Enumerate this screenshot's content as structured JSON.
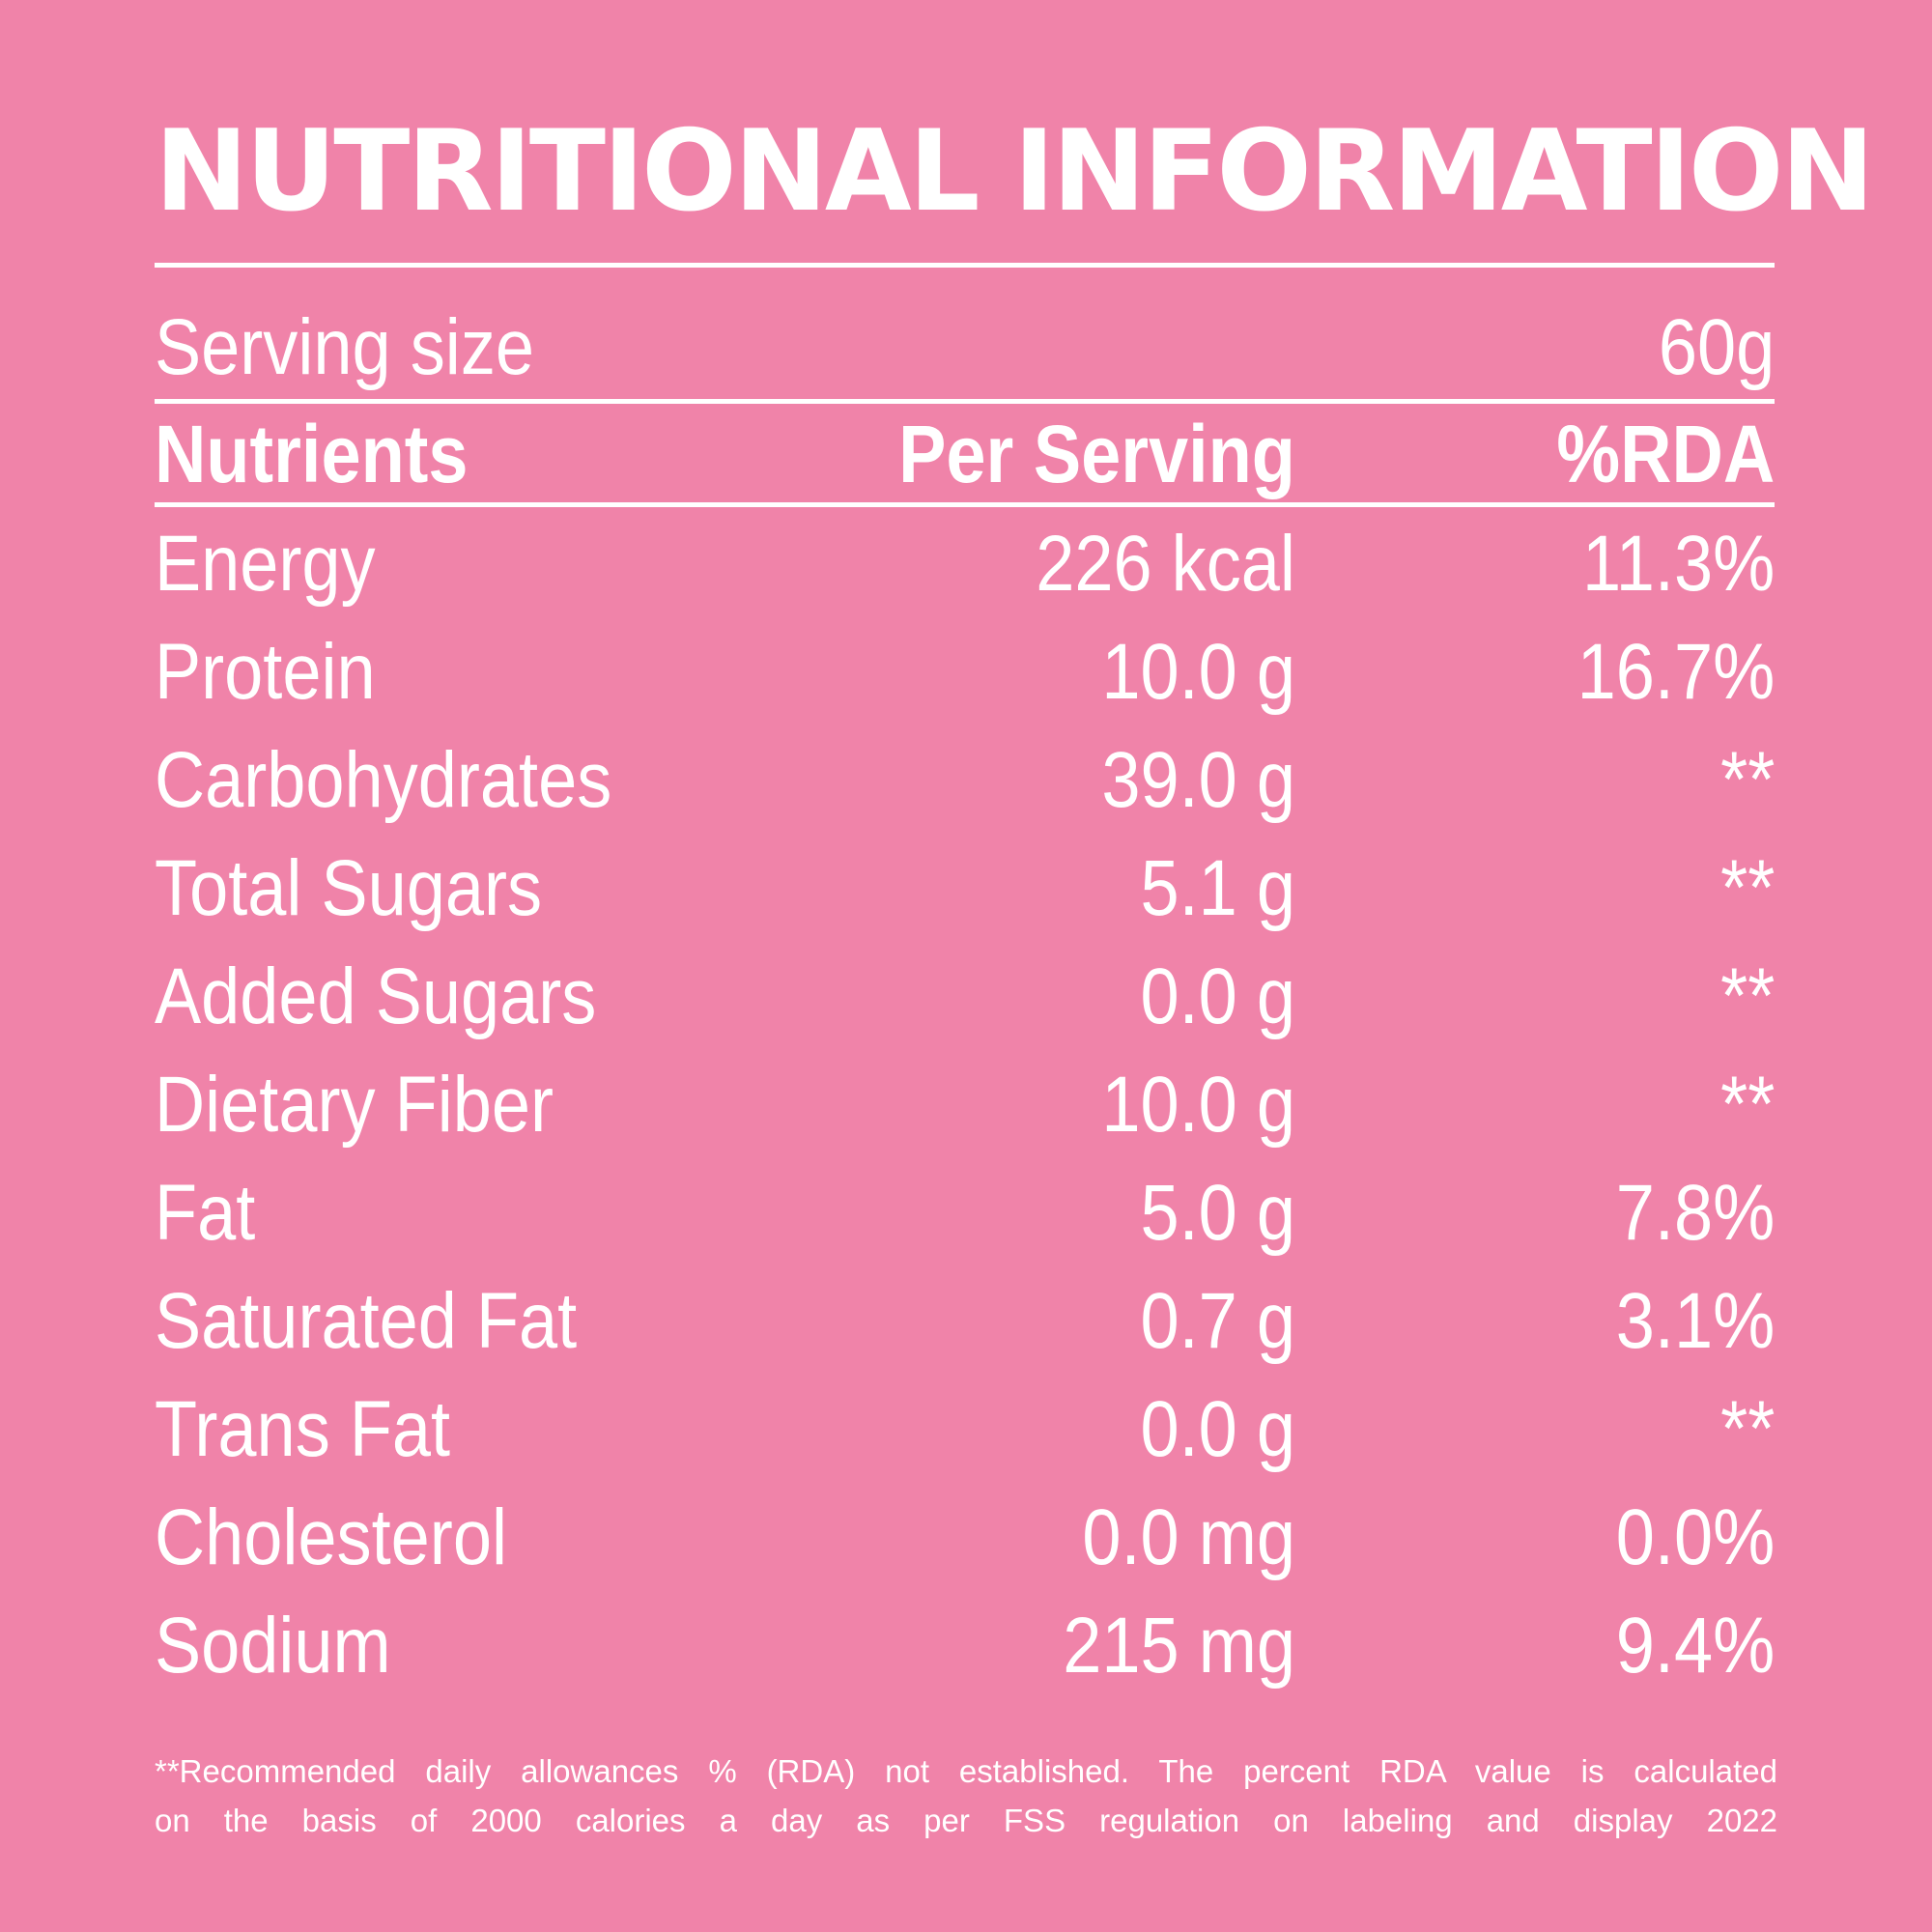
{
  "title": "NUTRITIONAL INFORMATION",
  "serving": {
    "label": "Serving  size",
    "value": "60g"
  },
  "header": {
    "nutrients": "Nutrients",
    "per_serving": "Per Serving",
    "rda": "%RDA"
  },
  "rows": [
    {
      "nutrient": "Energy",
      "per_serving": "226 kcal",
      "rda": "11.3%"
    },
    {
      "nutrient": "Protein",
      "per_serving": "10.0 g",
      "rda": "16.7%"
    },
    {
      "nutrient": "Carbohydrates",
      "per_serving": "39.0 g",
      "rda": "**"
    },
    {
      "nutrient": "Total Sugars",
      "per_serving": "5.1 g",
      "rda": "**"
    },
    {
      "nutrient": "Added Sugars",
      "per_serving": "0.0 g",
      "rda": "**"
    },
    {
      "nutrient": "Dietary Fiber",
      "per_serving": "10.0 g",
      "rda": "**"
    },
    {
      "nutrient": "Fat",
      "per_serving": "5.0 g",
      "rda": "7.8%"
    },
    {
      "nutrient": "Saturated Fat",
      "per_serving": "0.7 g",
      "rda": "3.1%"
    },
    {
      "nutrient": "Trans Fat",
      "per_serving": "0.0 g",
      "rda": "**"
    },
    {
      "nutrient": "Cholesterol",
      "per_serving": "0.0 mg",
      "rda": "0.0%"
    },
    {
      "nutrient": "Sodium",
      "per_serving": "215 mg",
      "rda": "9.4%"
    }
  ],
  "footnote": {
    "line1": "**Recommended daily allowances % (RDA) not established. The percent RDA value is calculated",
    "line2": "on the basis of 2000 calories a day as per FSS regulation on labeling and display 2022"
  },
  "colors": {
    "background": "#f083a9",
    "text": "#ffffff"
  }
}
